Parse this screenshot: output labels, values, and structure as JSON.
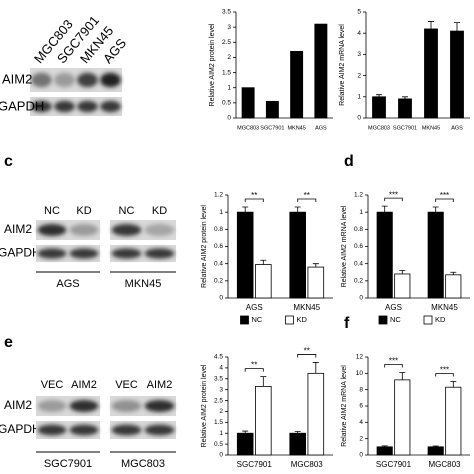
{
  "blots": [
    {
      "lanes": [
        "MGC803",
        "SGC7901",
        "MKN45",
        "AGS"
      ],
      "rows": [
        "AIM2",
        "GAPDH"
      ]
    },
    {
      "letter": "c",
      "groups": [
        {
          "name": "AGS",
          "lanes": [
            "NC",
            "KD"
          ]
        },
        {
          "name": "MKN45",
          "lanes": [
            "NC",
            "KD"
          ]
        }
      ],
      "rows": [
        "AIM2",
        "GAPDH"
      ]
    },
    {
      "letter": "e",
      "groups": [
        {
          "name": "SGC7901",
          "lanes": [
            "VEC",
            "AIM2"
          ]
        },
        {
          "name": "MGC803",
          "lanes": [
            "VEC",
            "AIM2"
          ]
        }
      ],
      "rows": [
        "AIM2",
        "GAPDH"
      ]
    }
  ],
  "chart_data": [
    {
      "type": "bar",
      "y_label": "Relative AIM2 protein level",
      "categories": [
        "MGC803",
        "SGC7901",
        "MKN45",
        "AGS"
      ],
      "series": [
        {
          "color": "#000000",
          "values": [
            1.0,
            0.55,
            2.2,
            3.1
          ]
        }
      ],
      "ylim": [
        0,
        3.5
      ],
      "yticks": [
        0,
        0.5,
        1,
        1.5,
        2,
        2.5,
        3,
        3.5
      ]
    },
    {
      "type": "bar",
      "y_label": "Relative AIM2 mRNA level",
      "categories": [
        "MGC803",
        "SGC7901",
        "MKN45",
        "AGS"
      ],
      "series": [
        {
          "color": "#000000",
          "values": [
            1.0,
            0.9,
            4.2,
            4.1
          ],
          "errors": [
            0.1,
            0.1,
            0.35,
            0.4
          ]
        }
      ],
      "ylim": [
        0,
        5
      ],
      "yticks": [
        0,
        1,
        2,
        3,
        4,
        5
      ]
    },
    {
      "type": "bar",
      "y_label": "Relative AIM2 protein level",
      "categories": [
        "AGS",
        "MKN45"
      ],
      "series": [
        {
          "name": "NC",
          "color": "#000000",
          "values": [
            1.0,
            1.0
          ],
          "errors": [
            0.06,
            0.06
          ]
        },
        {
          "name": "KD",
          "color": "#ffffff",
          "values": [
            0.39,
            0.36
          ],
          "errors": [
            0.05,
            0.04
          ]
        }
      ],
      "significance": [
        "**",
        "**"
      ],
      "ylim": [
        0,
        1.2
      ],
      "yticks": [
        0,
        0.2,
        0.4,
        0.6,
        0.8,
        1,
        1.2
      ]
    },
    {
      "type": "bar",
      "panel": "d",
      "y_label": "Relative AIM2 mRNA level",
      "categories": [
        "AGS",
        "MKN45"
      ],
      "series": [
        {
          "name": "NC",
          "color": "#000000",
          "values": [
            1.0,
            1.0
          ],
          "errors": [
            0.07,
            0.06
          ]
        },
        {
          "name": "KD",
          "color": "#ffffff",
          "values": [
            0.28,
            0.27
          ],
          "errors": [
            0.04,
            0.03
          ]
        }
      ],
      "significance": [
        "***",
        "***"
      ],
      "ylim": [
        0,
        1.2
      ],
      "yticks": [
        0,
        0.2,
        0.4,
        0.6,
        0.8,
        1,
        1.2
      ]
    },
    {
      "type": "bar",
      "y_label": "Relative AIM2 protein level",
      "categories": [
        "SGC7901",
        "MGC803"
      ],
      "series": [
        {
          "color": "#000000",
          "values": [
            1.0,
            1.0
          ],
          "errors": [
            0.1,
            0.08
          ]
        },
        {
          "color": "#ffffff",
          "values": [
            3.15,
            3.75
          ],
          "errors": [
            0.45,
            0.5
          ]
        }
      ],
      "significance": [
        "**",
        "**"
      ],
      "ylim": [
        0,
        4.5
      ],
      "yticks": [
        0,
        0.5,
        1,
        1.5,
        2,
        2.5,
        3,
        3.5,
        4,
        4.5
      ]
    },
    {
      "type": "bar",
      "panel": "f",
      "y_label": "Relative AIM2 mRNA level",
      "categories": [
        "SGC7901",
        "MGC803"
      ],
      "series": [
        {
          "color": "#000000",
          "values": [
            1.0,
            1.0
          ],
          "errors": [
            0.12,
            0.1
          ]
        },
        {
          "color": "#ffffff",
          "values": [
            9.2,
            8.3
          ],
          "errors": [
            0.9,
            0.7
          ]
        }
      ],
      "significance": [
        "***",
        "***"
      ],
      "ylim": [
        0,
        12
      ],
      "yticks": [
        0,
        2,
        4,
        6,
        8,
        10,
        12
      ]
    }
  ]
}
